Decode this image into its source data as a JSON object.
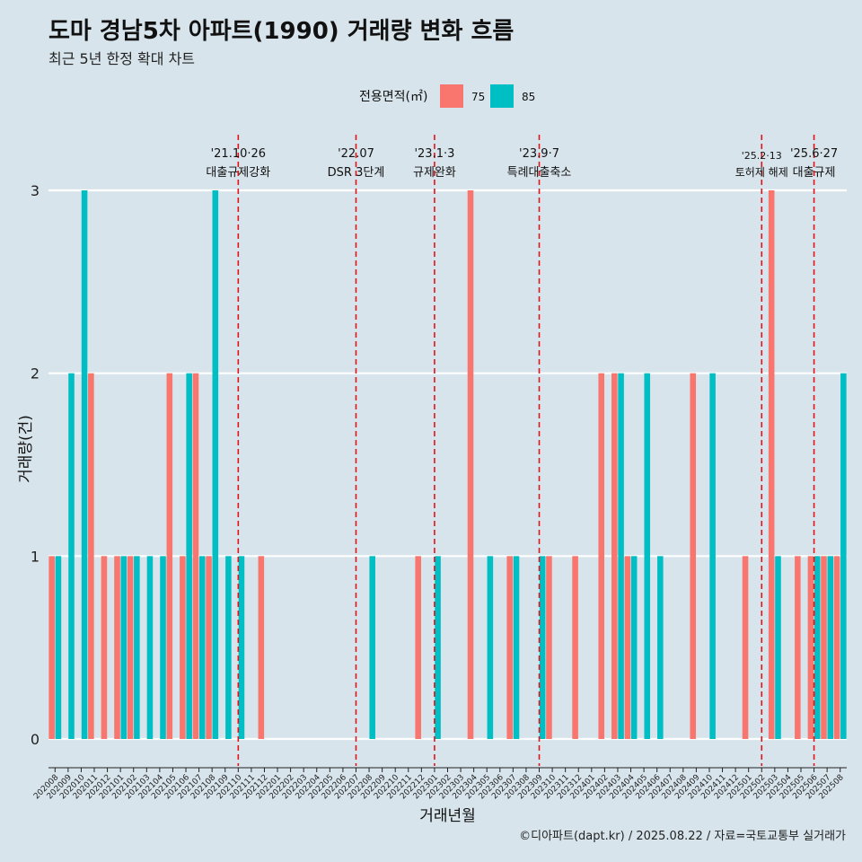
{
  "title": "도마 경남5차 아파트(1990) 거래량 변화 흐름",
  "subtitle": "최근 5년 한정 확대 차트",
  "caption": "©디아파트(dapt.kr) / 2025.08.22 / 자료=국토교통부 실거래가",
  "colors": {
    "series_75": "#f8766d",
    "series_85": "#00bfc4",
    "event_line": "#e0141b",
    "background": "#d7e4eb",
    "grid": "#ffffff"
  },
  "chart_data": {
    "type": "bar",
    "xlabel": "거래년월",
    "ylabel": "거래량(건)",
    "ylim": [
      0,
      3
    ],
    "yticks": [
      0,
      1,
      2,
      3
    ],
    "legend_title": "전용면적(㎡)",
    "legend_position": "top",
    "grid": true,
    "categories": [
      "202008",
      "202009",
      "202010",
      "202011",
      "202012",
      "202101",
      "202102",
      "202103",
      "202104",
      "202105",
      "202106",
      "202107",
      "202108",
      "202109",
      "202110",
      "202111",
      "202112",
      "202201",
      "202202",
      "202203",
      "202204",
      "202205",
      "202206",
      "202207",
      "202208",
      "202209",
      "202210",
      "202211",
      "202212",
      "202301",
      "202302",
      "202303",
      "202304",
      "202305",
      "202306",
      "202307",
      "202308",
      "202309",
      "202310",
      "202311",
      "202312",
      "202401",
      "202402",
      "202403",
      "202404",
      "202405",
      "202406",
      "202407",
      "202408",
      "202409",
      "202410",
      "202411",
      "202412",
      "202501",
      "202502",
      "202503",
      "202504",
      "202505",
      "202506",
      "202507",
      "202508"
    ],
    "series": [
      {
        "name": "75",
        "values": [
          1,
          0,
          0,
          2,
          1,
          1,
          1,
          0,
          0,
          2,
          1,
          2,
          1,
          0,
          0,
          0,
          1,
          0,
          0,
          0,
          0,
          0,
          0,
          0,
          0,
          0,
          0,
          0,
          1,
          0,
          0,
          0,
          3,
          0,
          0,
          1,
          0,
          0,
          1,
          0,
          1,
          0,
          2,
          2,
          1,
          0,
          0,
          0,
          0,
          2,
          0,
          0,
          0,
          1,
          0,
          3,
          0,
          1,
          1,
          1,
          1
        ]
      },
      {
        "name": "85",
        "values": [
          1,
          2,
          3,
          0,
          0,
          1,
          1,
          1,
          1,
          0,
          2,
          1,
          3,
          1,
          1,
          0,
          0,
          0,
          0,
          0,
          0,
          0,
          0,
          0,
          1,
          0,
          0,
          0,
          0,
          1,
          0,
          0,
          0,
          1,
          0,
          1,
          0,
          1,
          0,
          0,
          0,
          0,
          0,
          2,
          1,
          2,
          1,
          0,
          0,
          0,
          2,
          0,
          0,
          0,
          0,
          1,
          0,
          0,
          1,
          1,
          2
        ]
      }
    ],
    "events": [
      {
        "date": "'21.10·26",
        "label": "대출규제강화",
        "x": "202110"
      },
      {
        "date": "'22.07",
        "label": "DSR 3단계",
        "x": "202207"
      },
      {
        "date": "'23.1·3",
        "label": "규제완화",
        "x": "202301"
      },
      {
        "date": "'23.9·7",
        "label": "특례대출축소",
        "x": "202309"
      },
      {
        "date": "'25.2·13",
        "label": "토허제 해제",
        "x": "202502"
      },
      {
        "date": "'25.6·27",
        "label": "대출규제",
        "x": "202506"
      }
    ]
  }
}
